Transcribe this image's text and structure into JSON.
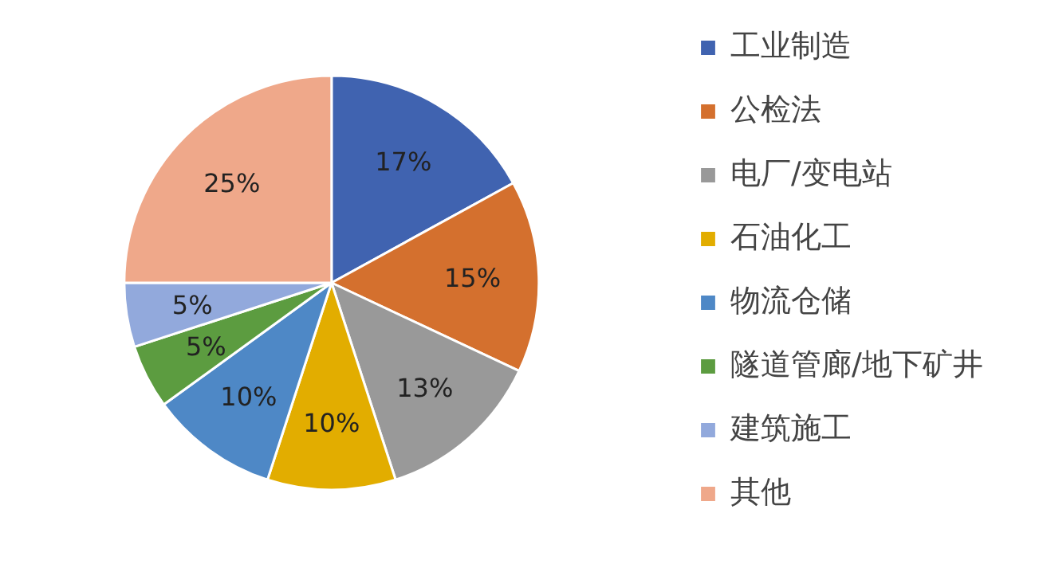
{
  "chart_data": {
    "type": "pie",
    "categories": [
      "工业制造",
      "公检法",
      "电厂/变电站",
      "石油化工",
      "物流仓储",
      "隧道管廊/地下矿井",
      "建筑施工",
      "其他"
    ],
    "values": [
      17,
      15,
      13,
      10,
      10,
      5,
      5,
      25
    ],
    "colors": [
      "#4063b0",
      "#d4702e",
      "#999999",
      "#e2ad00",
      "#4e88c6",
      "#5c9c40",
      "#92a9dc",
      "#efa88a"
    ],
    "value_labels": [
      "17%",
      "15%",
      "13%",
      "10%",
      "10%",
      "5%",
      "5%",
      "25%"
    ],
    "legend": "right"
  }
}
